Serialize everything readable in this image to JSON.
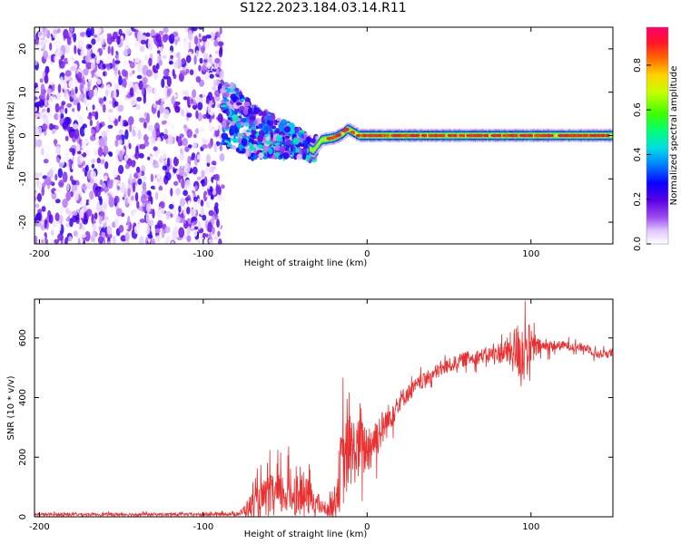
{
  "title": "S122.2023.184.03.14.R11",
  "chart_data": [
    {
      "type": "heatmap",
      "xlabel": "Height of straight line (km)",
      "ylabel": "Frequency (Hz)",
      "xlim": [
        -203,
        150
      ],
      "ylim": [
        -25,
        25
      ],
      "xticks": [
        -200,
        -100,
        0,
        100
      ],
      "yticks": [
        -20,
        -10,
        0,
        10,
        20
      ],
      "colorbar": {
        "label": "Normalized spectral amplitude",
        "range": [
          0,
          0.97
        ],
        "ticks": [
          0.0,
          0.2,
          0.4,
          0.6,
          0.8
        ],
        "tick_labels": [
          "0.0",
          "0.2",
          "0.4",
          "0.6",
          "0.8"
        ]
      },
      "regions": [
        {
          "x_range": [
            -203,
            -88
          ],
          "description": "broadband noise",
          "freq_range": [
            -25,
            25
          ],
          "amplitude": [
            0.0,
            0.15
          ]
        },
        {
          "x_range": [
            -88,
            -30
          ],
          "description": "scattered signal",
          "freq_range": [
            -10,
            7
          ],
          "amplitude": [
            0.1,
            0.5
          ]
        },
        {
          "x_range": [
            -30,
            150
          ],
          "description": "carrier line",
          "freq_center": 0,
          "freq_width": 2,
          "amplitude": [
            0.3,
            0.97
          ]
        }
      ],
      "carrier_center": [
        {
          "x": -88,
          "f": 5
        },
        {
          "x": -80,
          "f": 4
        },
        {
          "x": -70,
          "f": 1
        },
        {
          "x": -60,
          "f": 0
        },
        {
          "x": -50,
          "f": -1
        },
        {
          "x": -40,
          "f": -2
        },
        {
          "x": -33,
          "f": -3.5
        },
        {
          "x": -28,
          "f": -1
        },
        {
          "x": -20,
          "f": -0.5
        },
        {
          "x": -15,
          "f": 0.5
        },
        {
          "x": -12,
          "f": 1.5
        },
        {
          "x": -5,
          "f": 0
        },
        {
          "x": 0,
          "f": 0
        },
        {
          "x": 150,
          "f": 0
        }
      ]
    },
    {
      "type": "line",
      "xlabel": "Height of straight line (km)",
      "ylabel": "SNR (10 * v/v)",
      "xlim": [
        -203,
        150
      ],
      "ylim": [
        0,
        730
      ],
      "xticks": [
        -200,
        -100,
        0,
        100
      ],
      "yticks": [
        0,
        200,
        400,
        600
      ],
      "series": [
        {
          "color": "#e83030",
          "envelope": [
            {
              "x": -203,
              "y": 8,
              "noise": 5
            },
            {
              "x": -100,
              "y": 8,
              "noise": 5
            },
            {
              "x": -78,
              "y": 10,
              "noise": 6
            },
            {
              "x": -70,
              "y": 40,
              "noise": 45
            },
            {
              "x": -60,
              "y": 70,
              "noise": 70
            },
            {
              "x": -45,
              "y": 80,
              "noise": 75
            },
            {
              "x": -35,
              "y": 65,
              "noise": 60
            },
            {
              "x": -25,
              "y": 20,
              "noise": 12
            },
            {
              "x": -20,
              "y": 45,
              "noise": 60
            },
            {
              "x": -15,
              "y": 180,
              "noise": 150
            },
            {
              "x": -10,
              "y": 220,
              "noise": 120
            },
            {
              "x": 0,
              "y": 230,
              "noise": 90
            },
            {
              "x": 10,
              "y": 300,
              "noise": 60
            },
            {
              "x": 20,
              "y": 390,
              "noise": 35
            },
            {
              "x": 30,
              "y": 440,
              "noise": 25
            },
            {
              "x": 45,
              "y": 495,
              "noise": 25
            },
            {
              "x": 60,
              "y": 530,
              "noise": 25
            },
            {
              "x": 75,
              "y": 545,
              "noise": 25
            },
            {
              "x": 85,
              "y": 555,
              "noise": 45
            },
            {
              "x": 95,
              "y": 560,
              "noise": 120
            },
            {
              "x": 105,
              "y": 570,
              "noise": 25
            },
            {
              "x": 120,
              "y": 575,
              "noise": 15
            },
            {
              "x": 135,
              "y": 565,
              "noise": 15
            },
            {
              "x": 140,
              "y": 545,
              "noise": 15
            },
            {
              "x": 150,
              "y": 550,
              "noise": 15
            }
          ]
        }
      ]
    }
  ]
}
